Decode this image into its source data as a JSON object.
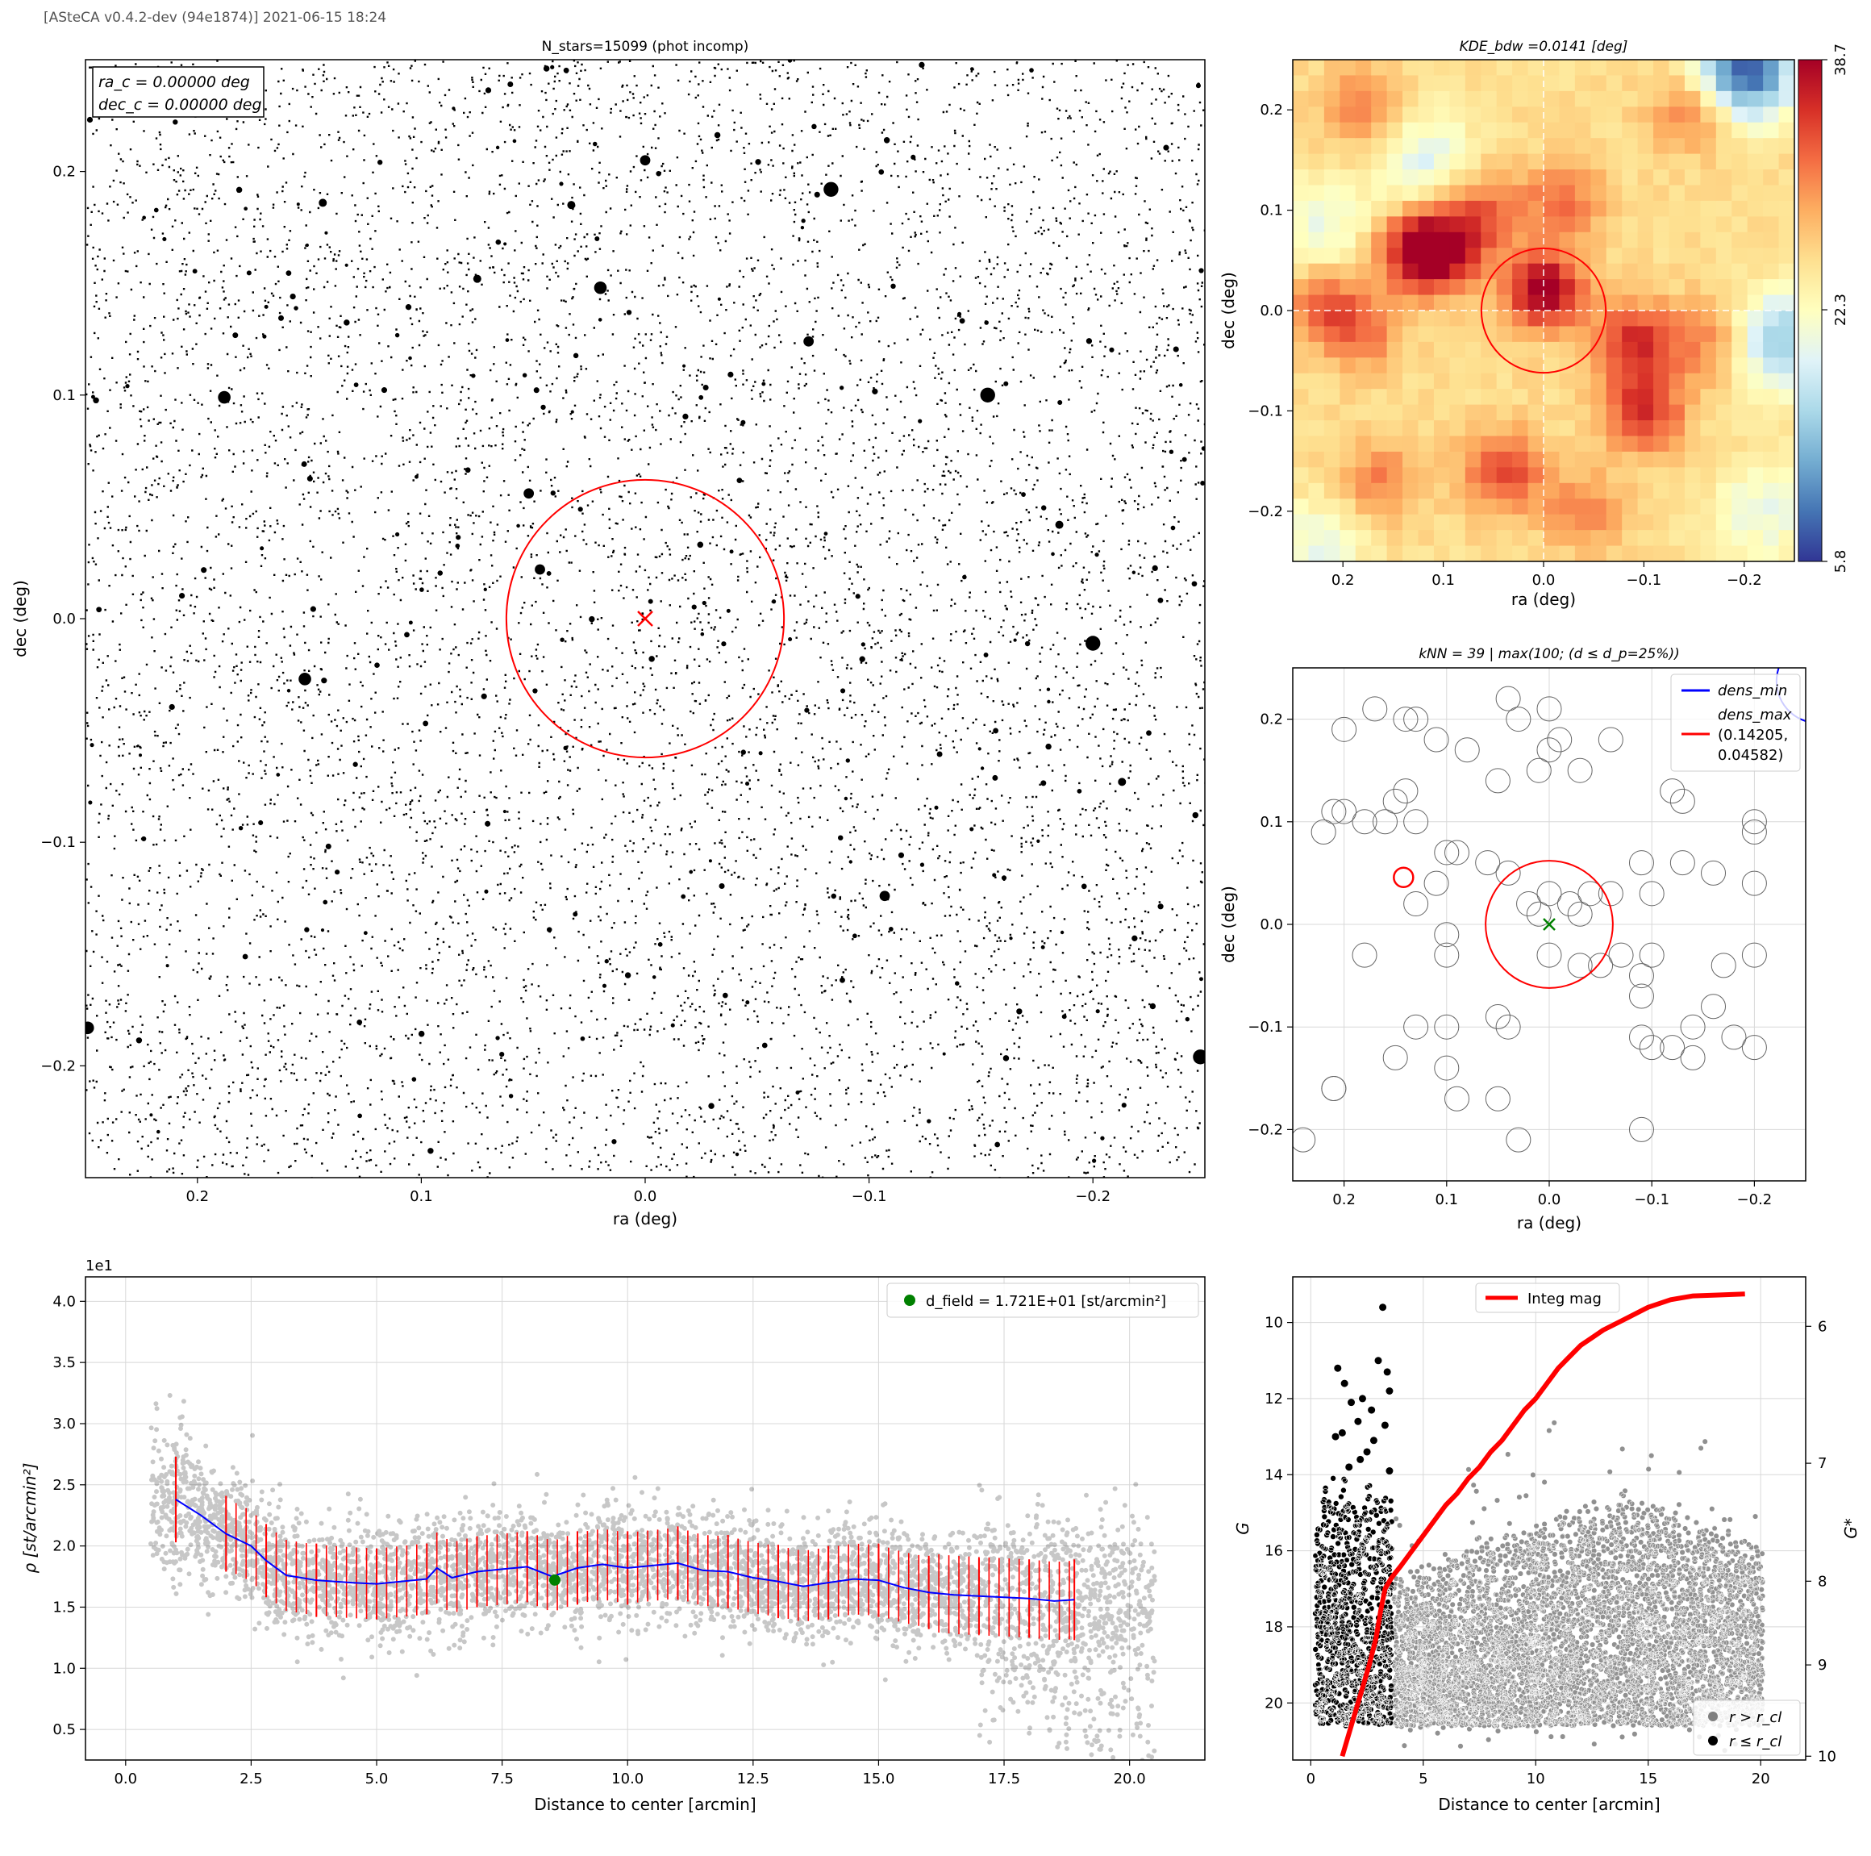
{
  "header": "[ASteCA v0.4.2-dev (94e1874)] 2021-06-15 18:24",
  "colors": {
    "red": "#ff0000",
    "blue": "#0000ff",
    "green": "#008000",
    "gray": "#808080"
  },
  "chart_data": [
    {
      "id": "star-map",
      "type": "scatter",
      "title": "N_stars=15099 (phot incomp)",
      "xlabel": "ra (deg)",
      "ylabel": "dec (deg)",
      "xlim": [
        0.25,
        -0.25
      ],
      "ylim": [
        -0.25,
        0.25
      ],
      "xticks": [
        0.2,
        0.1,
        0.0,
        -0.1,
        -0.2
      ],
      "yticks": [
        0.2,
        0.1,
        0.0,
        -0.1,
        -0.2
      ],
      "xtick_labels": [
        "0.2",
        "0.1",
        "0.0",
        "−0.1",
        "−0.2"
      ],
      "ytick_labels": [
        "0.2",
        "0.1",
        "0.0",
        "−0.1",
        "−0.2"
      ],
      "n_stars": 15099,
      "center_box": [
        "ra_c = 0.00000 deg",
        "dec_c = 0.00000 deg"
      ],
      "cluster_radius": 0.062,
      "center": [
        0.0,
        0.0
      ],
      "bright_stars": [
        [
          0.144,
          0.186
        ],
        [
          0.0,
          0.205
        ],
        [
          0.02,
          0.148
        ],
        [
          -0.083,
          0.192
        ],
        [
          0.075,
          0.152
        ],
        [
          -0.073,
          0.124
        ],
        [
          0.188,
          0.099
        ],
        [
          -0.153,
          0.1
        ],
        [
          -0.185,
          0.042
        ],
        [
          0.047,
          0.022
        ],
        [
          0.152,
          -0.027
        ],
        [
          -0.2,
          -0.011
        ],
        [
          -0.213,
          -0.073
        ],
        [
          -0.107,
          -0.124
        ],
        [
          0.249,
          -0.183
        ],
        [
          -0.248,
          -0.196
        ],
        [
          0.033,
          0.185
        ],
        [
          0.052,
          0.056
        ]
      ]
    },
    {
      "id": "kde-map",
      "type": "heatmap",
      "title": "KDE_bdw =0.0141 [deg]",
      "xlabel": "ra (deg)",
      "ylabel": "dec (deg)",
      "xlim": [
        0.25,
        -0.25
      ],
      "ylim": [
        -0.25,
        0.25
      ],
      "xticks": [
        0.2,
        0.1,
        0.0,
        -0.1,
        -0.2
      ],
      "yticks": [
        0.2,
        0.1,
        0.0,
        -0.1,
        -0.2
      ],
      "xtick_labels": [
        "0.2",
        "0.1",
        "0.0",
        "−0.1",
        "−0.2"
      ],
      "ytick_labels": [
        "0.2",
        "0.1",
        "0.0",
        "−0.1",
        "−0.2"
      ],
      "colorbar_ticks": [
        "38.7",
        "22.3",
        "5.8"
      ],
      "colorbar_range": [
        5.8,
        38.7
      ],
      "peaks": [
        [
          0.0,
          0.02,
          1.0
        ],
        [
          0.1,
          0.06,
          0.85
        ],
        [
          0.13,
          0.06,
          0.7
        ],
        [
          -0.1,
          -0.1,
          0.75
        ],
        [
          -0.09,
          -0.03,
          0.7
        ],
        [
          0.04,
          -0.16,
          0.65
        ],
        [
          0.22,
          0.01,
          0.5
        ],
        [
          0.18,
          -0.02,
          0.45
        ],
        [
          0.06,
          0.1,
          0.5
        ],
        [
          -0.02,
          0.11,
          0.45
        ],
        [
          -0.15,
          0.2,
          0.5
        ],
        [
          0.18,
          0.2,
          0.45
        ],
        [
          -0.16,
          -0.03,
          0.4
        ],
        [
          0.16,
          -0.17,
          0.4
        ],
        [
          -0.04,
          -0.2,
          0.4
        ]
      ],
      "lows": [
        [
          -0.2,
          0.24,
          1.0
        ],
        [
          -0.24,
          -0.03,
          0.6
        ],
        [
          0.12,
          0.15,
          0.35
        ],
        [
          0.22,
          0.08,
          0.3
        ],
        [
          -0.22,
          -0.2,
          0.3
        ],
        [
          0.23,
          -0.24,
          0.3
        ]
      ],
      "cluster_radius": 0.062
    },
    {
      "id": "knn-map",
      "type": "scatter",
      "title": "kNN = 39 | max(100; (d ≤ d_p=25%))",
      "xlabel": "ra (deg)",
      "ylabel": "dec (deg)",
      "xlim": [
        0.25,
        -0.25
      ],
      "ylim": [
        -0.25,
        0.25
      ],
      "xticks": [
        0.2,
        0.1,
        0.0,
        -0.1,
        -0.2
      ],
      "yticks": [
        0.2,
        0.1,
        0.0,
        -0.1,
        -0.2
      ],
      "xtick_labels": [
        "0.2",
        "0.1",
        "0.0",
        "−0.1",
        "−0.2"
      ],
      "ytick_labels": [
        "0.2",
        "0.1",
        "0.0",
        "−0.1",
        "−0.2"
      ],
      "legend": [
        "dens_min",
        "dens_max",
        "(0.14205,",
        "0.04582)"
      ],
      "dens_max_point": [
        0.14205,
        0.04582
      ],
      "cluster_radius": 0.062,
      "circles": [
        [
          0.2,
          0.19
        ],
        [
          0.2,
          0.11
        ],
        [
          0.17,
          0.21
        ],
        [
          0.14,
          0.2
        ],
        [
          0.13,
          0.2
        ],
        [
          0.11,
          0.18
        ],
        [
          0.08,
          0.17
        ],
        [
          0.04,
          0.22
        ],
        [
          0.03,
          0.2
        ],
        [
          0.0,
          0.21
        ],
        [
          -0.01,
          0.18
        ],
        [
          -0.06,
          0.18
        ],
        [
          0.0,
          0.17
        ],
        [
          0.01,
          0.15
        ],
        [
          -0.03,
          0.15
        ],
        [
          0.05,
          0.14
        ],
        [
          0.14,
          0.13
        ],
        [
          0.15,
          0.12
        ],
        [
          0.18,
          0.1
        ],
        [
          0.16,
          0.1
        ],
        [
          0.13,
          0.1
        ],
        [
          0.09,
          0.07
        ],
        [
          0.06,
          0.06
        ],
        [
          0.04,
          0.05
        ],
        [
          0.21,
          0.11
        ],
        [
          0.22,
          0.09
        ],
        [
          0.1,
          0.07
        ],
        [
          0.11,
          0.04
        ],
        [
          0.0,
          0.03
        ],
        [
          0.02,
          0.02
        ],
        [
          0.01,
          0.01
        ],
        [
          -0.02,
          0.02
        ],
        [
          -0.04,
          0.03
        ],
        [
          -0.03,
          0.01
        ],
        [
          -0.06,
          0.03
        ],
        [
          -0.09,
          0.06
        ],
        [
          -0.1,
          0.03
        ],
        [
          -0.13,
          0.06
        ],
        [
          -0.16,
          0.05
        ],
        [
          -0.2,
          0.04
        ],
        [
          -0.2,
          0.09
        ],
        [
          -0.12,
          0.13
        ],
        [
          -0.13,
          0.12
        ],
        [
          -0.2,
          0.1
        ],
        [
          0.13,
          0.02
        ],
        [
          0.1,
          -0.01
        ],
        [
          0.1,
          -0.03
        ],
        [
          0.18,
          -0.03
        ],
        [
          0.13,
          -0.1
        ],
        [
          0.1,
          -0.1
        ],
        [
          0.05,
          -0.09
        ],
        [
          0.04,
          -0.1
        ],
        [
          0.0,
          -0.03
        ],
        [
          -0.03,
          -0.04
        ],
        [
          -0.05,
          -0.04
        ],
        [
          -0.07,
          -0.03
        ],
        [
          -0.09,
          -0.05
        ],
        [
          -0.1,
          -0.03
        ],
        [
          -0.09,
          -0.07
        ],
        [
          -0.09,
          -0.11
        ],
        [
          -0.1,
          -0.12
        ],
        [
          -0.12,
          -0.12
        ],
        [
          -0.14,
          -0.13
        ],
        [
          -0.16,
          -0.08
        ],
        [
          -0.18,
          -0.11
        ],
        [
          -0.2,
          -0.03
        ],
        [
          -0.2,
          -0.12
        ],
        [
          -0.17,
          -0.04
        ],
        [
          0.15,
          -0.13
        ],
        [
          0.1,
          -0.14
        ],
        [
          0.21,
          -0.16
        ],
        [
          0.09,
          -0.17
        ],
        [
          0.05,
          -0.17
        ],
        [
          0.03,
          -0.21
        ],
        [
          -0.09,
          -0.2
        ],
        [
          0.24,
          -0.21
        ],
        [
          0.21,
          -0.16
        ],
        [
          -0.14,
          -0.1
        ]
      ]
    },
    {
      "id": "density-profile",
      "type": "scatter",
      "scale_label": "1e1",
      "xlabel": "Distance to center [arcmin]",
      "ylabel": "ρ [st/arcmin²]",
      "xlim": [
        -0.8,
        21.5
      ],
      "ylim": [
        0.25,
        4.2
      ],
      "xticks": [
        0.0,
        2.5,
        5.0,
        7.5,
        10.0,
        12.5,
        15.0,
        17.5,
        20.0
      ],
      "yticks": [
        0.5,
        1.0,
        1.5,
        2.0,
        2.5,
        3.0,
        3.5,
        4.0
      ],
      "xtick_labels": [
        "0.0",
        "2.5",
        "5.0",
        "7.5",
        "10.0",
        "12.5",
        "15.0",
        "17.5",
        "20.0"
      ],
      "ytick_labels": [
        "0.5",
        "1.0",
        "1.5",
        "2.0",
        "2.5",
        "3.0",
        "3.5",
        "4.0"
      ],
      "legend": [
        "d_field =  1.721E+01 [st/arcmin²]"
      ],
      "field_density": 1.721,
      "field_point": [
        8.55,
        1.721
      ],
      "profile": [
        [
          1.0,
          2.38
        ],
        [
          1.5,
          2.25
        ],
        [
          2.0,
          2.1
        ],
        [
          2.5,
          2.0
        ],
        [
          2.8,
          1.88
        ],
        [
          3.2,
          1.76
        ],
        [
          3.8,
          1.72
        ],
        [
          4.5,
          1.7
        ],
        [
          5.0,
          1.69
        ],
        [
          5.5,
          1.71
        ],
        [
          6.0,
          1.73
        ],
        [
          6.2,
          1.82
        ],
        [
          6.5,
          1.74
        ],
        [
          7.0,
          1.79
        ],
        [
          7.5,
          1.81
        ],
        [
          8.0,
          1.83
        ],
        [
          8.5,
          1.75
        ],
        [
          9.0,
          1.82
        ],
        [
          9.5,
          1.85
        ],
        [
          10.0,
          1.82
        ],
        [
          10.5,
          1.84
        ],
        [
          11.0,
          1.86
        ],
        [
          11.5,
          1.8
        ],
        [
          12.0,
          1.79
        ],
        [
          12.5,
          1.74
        ],
        [
          13.0,
          1.71
        ],
        [
          13.5,
          1.67
        ],
        [
          14.0,
          1.7
        ],
        [
          14.5,
          1.73
        ],
        [
          15.0,
          1.72
        ],
        [
          15.5,
          1.66
        ],
        [
          16.0,
          1.62
        ],
        [
          16.5,
          1.6
        ],
        [
          17.0,
          1.59
        ],
        [
          17.5,
          1.58
        ],
        [
          18.0,
          1.57
        ],
        [
          18.5,
          1.55
        ],
        [
          18.9,
          1.56
        ]
      ],
      "errorbars": [
        [
          1.0,
          2.38,
          0.35
        ],
        [
          2.0,
          2.1,
          0.31
        ],
        [
          2.8,
          1.88,
          0.3
        ],
        [
          3.8,
          1.72,
          0.3
        ],
        [
          5.0,
          1.69,
          0.29
        ],
        [
          6.0,
          1.73,
          0.29
        ],
        [
          7.0,
          1.79,
          0.29
        ],
        [
          8.0,
          1.83,
          0.29
        ],
        [
          9.0,
          1.82,
          0.3
        ],
        [
          10.0,
          1.82,
          0.3
        ],
        [
          11.0,
          1.86,
          0.3
        ],
        [
          12.0,
          1.79,
          0.3
        ],
        [
          13.0,
          1.71,
          0.3
        ],
        [
          14.0,
          1.7,
          0.3
        ],
        [
          15.0,
          1.72,
          0.3
        ],
        [
          16.0,
          1.62,
          0.3
        ],
        [
          17.0,
          1.59,
          0.31
        ],
        [
          18.0,
          1.57,
          0.32
        ],
        [
          18.9,
          1.56,
          0.33
        ]
      ]
    },
    {
      "id": "magnitude-profile",
      "type": "scatter",
      "xlabel": "Distance to center [arcmin]",
      "ylabel": "G",
      "ylabel_right": "G*",
      "xlim": [
        -0.8,
        22.0
      ],
      "ylim": [
        21.5,
        8.8
      ],
      "xticks": [
        0,
        5,
        10,
        15,
        20
      ],
      "yticks": [
        10,
        12,
        14,
        16,
        18,
        20
      ],
      "xtick_labels": [
        "0",
        "5",
        "10",
        "15",
        "20"
      ],
      "ytick_labels": [
        "10",
        "12",
        "14",
        "16",
        "18",
        "20"
      ],
      "right_ticks": [
        [
          6,
          10.1
        ],
        [
          7,
          13.7
        ],
        [
          8,
          16.8
        ],
        [
          9,
          19.0
        ],
        [
          10,
          21.4
        ]
      ],
      "right_tick_labels": [
        "6",
        "7",
        "8",
        "9",
        "10"
      ],
      "legend": [
        "Integ mag"
      ],
      "legend_bottom": [
        "r > r_cl",
        "r ≤ r_cl"
      ],
      "cluster_radius_arcmin": 3.7,
      "bright_members": [
        [
          3.2,
          9.6
        ],
        [
          3.0,
          11.0
        ],
        [
          1.2,
          11.2
        ],
        [
          3.4,
          11.3
        ],
        [
          1.5,
          11.6
        ],
        [
          3.5,
          11.8
        ],
        [
          2.3,
          12.0
        ],
        [
          1.8,
          12.1
        ],
        [
          2.7,
          12.3
        ],
        [
          2.1,
          12.6
        ],
        [
          3.3,
          12.7
        ],
        [
          1.4,
          12.9
        ],
        [
          2.8,
          13.1
        ],
        [
          1.1,
          13.0
        ],
        [
          2.5,
          13.4
        ],
        [
          2.2,
          13.6
        ],
        [
          1.7,
          13.8
        ],
        [
          3.5,
          13.9
        ]
      ],
      "integ_mag": [
        [
          1.4,
          21.4
        ],
        [
          1.8,
          20.6
        ],
        [
          2.2,
          19.8
        ],
        [
          2.6,
          19.0
        ],
        [
          2.9,
          18.3
        ],
        [
          3.1,
          17.6
        ],
        [
          3.3,
          17.0
        ],
        [
          3.6,
          16.7
        ],
        [
          4.0,
          16.4
        ],
        [
          4.5,
          16.0
        ],
        [
          5.0,
          15.6
        ],
        [
          5.5,
          15.2
        ],
        [
          6.0,
          14.8
        ],
        [
          6.5,
          14.5
        ],
        [
          7.0,
          14.1
        ],
        [
          7.5,
          13.8
        ],
        [
          8.0,
          13.4
        ],
        [
          8.5,
          13.1
        ],
        [
          9.0,
          12.7
        ],
        [
          9.5,
          12.3
        ],
        [
          10.0,
          12.0
        ],
        [
          10.5,
          11.6
        ],
        [
          11.0,
          11.2
        ],
        [
          11.5,
          10.9
        ],
        [
          12.0,
          10.6
        ],
        [
          12.5,
          10.4
        ],
        [
          13.0,
          10.2
        ],
        [
          14.0,
          9.9
        ],
        [
          15.0,
          9.6
        ],
        [
          16.0,
          9.4
        ],
        [
          17.0,
          9.3
        ],
        [
          18.0,
          9.28
        ],
        [
          19.3,
          9.25
        ]
      ]
    }
  ]
}
